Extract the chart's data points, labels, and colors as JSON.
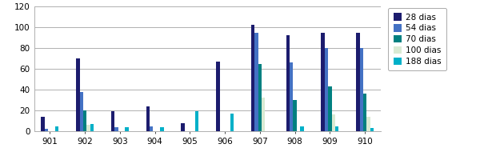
{
  "categories": [
    "901",
    "902",
    "903",
    "904",
    "905",
    "906",
    "907",
    "908",
    "909",
    "910"
  ],
  "series": {
    "28 dias": [
      14,
      70,
      19,
      24,
      8,
      67,
      102,
      92,
      95,
      95
    ],
    "54 dias": [
      2,
      38,
      4,
      5,
      0,
      0,
      95,
      66,
      80,
      80
    ],
    "70 dias": [
      0,
      20,
      0,
      0,
      0,
      0,
      65,
      30,
      43,
      36
    ],
    "100 dias": [
      0,
      6,
      0,
      0,
      0,
      0,
      32,
      0,
      16,
      14
    ],
    "188 dias": [
      5,
      7,
      4,
      4,
      19,
      17,
      0,
      5,
      5,
      3
    ]
  },
  "colors": {
    "28 dias": "#1c1c6e",
    "54 dias": "#4472c4",
    "70 dias": "#008080",
    "100 dias": "#d9ead3",
    "188 dias": "#00b0c8"
  },
  "ylim": [
    0,
    120
  ],
  "yticks": [
    0,
    20,
    40,
    60,
    80,
    100,
    120
  ],
  "legend_order": [
    "28 dias",
    "54 dias",
    "70 dias",
    "100 dias",
    "188 dias"
  ],
  "background_color": "#ffffff",
  "grid_color": "#b0b0b0",
  "bar_width": 0.1,
  "figsize": [
    6.1,
    2.0
  ],
  "dpi": 100
}
